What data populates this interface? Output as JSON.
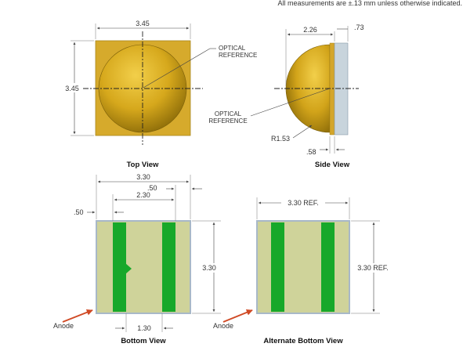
{
  "note": "All measurements are ±.13 mm unless otherwise indicated.",
  "colors": {
    "package_gold": "#d4a62a",
    "dome_gold": "#c99a10",
    "pad_background": "#cfd39a",
    "pad_green": "#17a82a",
    "pad_border": "#a8b8c8",
    "side_plate": "#c8d4dc",
    "arrow_red": "#d04a25"
  },
  "top_view": {
    "title": "Top View",
    "width_label": "3.45",
    "height_label": "3.45",
    "optical_ref_line1": "OPTICAL",
    "optical_ref_line2": "REFERENCE"
  },
  "side_view": {
    "title": "Side View",
    "height_label": "2.26",
    "plate_label": ".73",
    "base_label": ".58",
    "radius_label": "R1.53",
    "optical_ref_line1": "OPTICAL",
    "optical_ref_line2": "REFERENCE"
  },
  "bottom_view": {
    "title": "Bottom View",
    "width_label": "3.30",
    "pad_span_label": "2.30",
    "pad_width_label": ".50",
    "edge_offset_label": ".50",
    "height_label": "3.30",
    "gap_label": "1.30",
    "anode_label": "Anode"
  },
  "alt_bottom_view": {
    "title": "Alternate Bottom View",
    "width_label": "3.30 REF.",
    "height_label": "3.30 REF.",
    "anode_label": "Anode"
  }
}
